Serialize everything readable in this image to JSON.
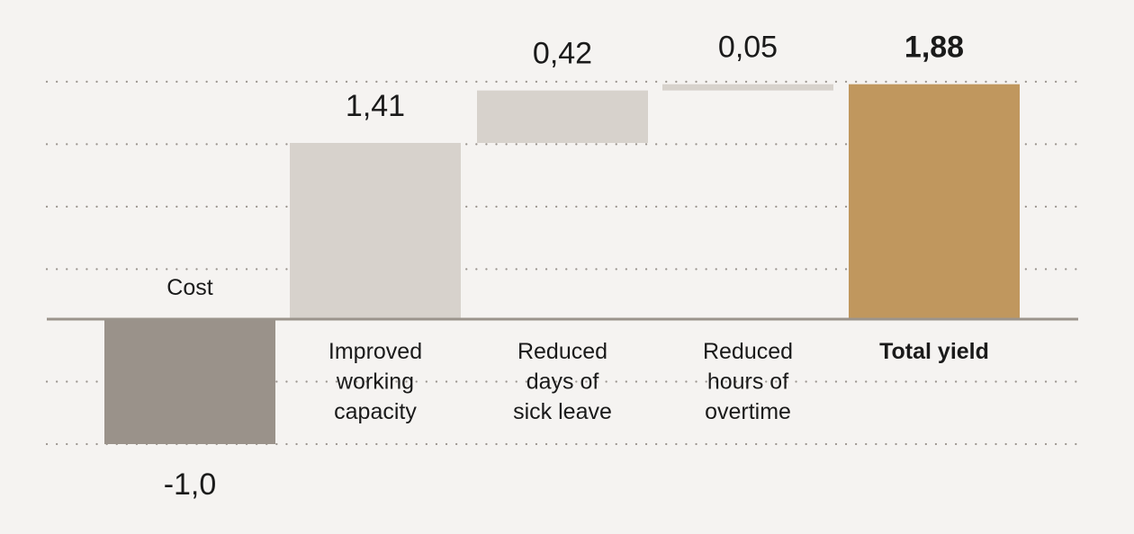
{
  "chart_data": {
    "type": "bar",
    "subtype": "waterfall",
    "categories": [
      [
        "Cost"
      ],
      [
        "Improved",
        "working",
        "capacity"
      ],
      [
        "Reduced",
        "days of",
        "sick leave"
      ],
      [
        "Reduced",
        "hours of",
        "overtime"
      ],
      [
        "Total yield"
      ]
    ],
    "values": [
      -1.0,
      1.41,
      0.42,
      0.05,
      1.88
    ],
    "value_labels": [
      "-1,0",
      "1,41",
      "0,42",
      "0,05",
      "1,88"
    ],
    "bar_kinds": [
      "cost",
      "step",
      "step",
      "step",
      "total"
    ],
    "ylim": [
      -1.0,
      1.9
    ],
    "grid": true,
    "colors": {
      "cost": "#9a928a",
      "step": "#d7d2cc",
      "total": "#c0975e",
      "baseline": "#9b948c",
      "grid": "#9b958f",
      "text": "#1a1a1a"
    }
  }
}
